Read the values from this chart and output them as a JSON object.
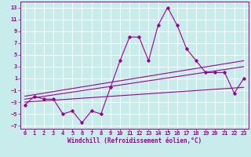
{
  "xlabel": "Windchill (Refroidissement éolien,°C)",
  "bg_color": "#c8ecec",
  "line_color": "#990099",
  "grid_color": "#ffffff",
  "xlim": [
    -0.5,
    23.5
  ],
  "ylim": [
    -7.5,
    14.0
  ],
  "x_ticks": [
    0,
    1,
    2,
    3,
    4,
    5,
    6,
    7,
    8,
    9,
    10,
    11,
    12,
    13,
    14,
    15,
    16,
    17,
    18,
    19,
    20,
    21,
    22,
    23
  ],
  "y_ticks": [
    -7,
    -5,
    -3,
    -1,
    1,
    3,
    5,
    7,
    9,
    11,
    13
  ],
  "main_x": [
    0,
    1,
    2,
    3,
    4,
    5,
    6,
    7,
    8,
    9,
    10,
    11,
    12,
    13,
    14,
    15,
    16,
    17,
    18,
    19,
    20,
    21,
    22,
    23
  ],
  "main_y": [
    -3.5,
    -2,
    -2.5,
    -2.5,
    -5,
    -4.5,
    -6.5,
    -4.5,
    -5,
    -0.5,
    4,
    8,
    8,
    4,
    10,
    13,
    10,
    6,
    4,
    2,
    2,
    2,
    -1.5,
    1
  ],
  "line1_x": [
    0,
    23
  ],
  "line1_y": [
    -3.0,
    -0.5
  ],
  "line2_x": [
    0,
    23
  ],
  "line2_y": [
    -2.5,
    3.0
  ],
  "line3_x": [
    0,
    23
  ],
  "line3_y": [
    -2.0,
    4.0
  ],
  "tick_fontsize": 5.0,
  "label_fontsize": 5.5
}
